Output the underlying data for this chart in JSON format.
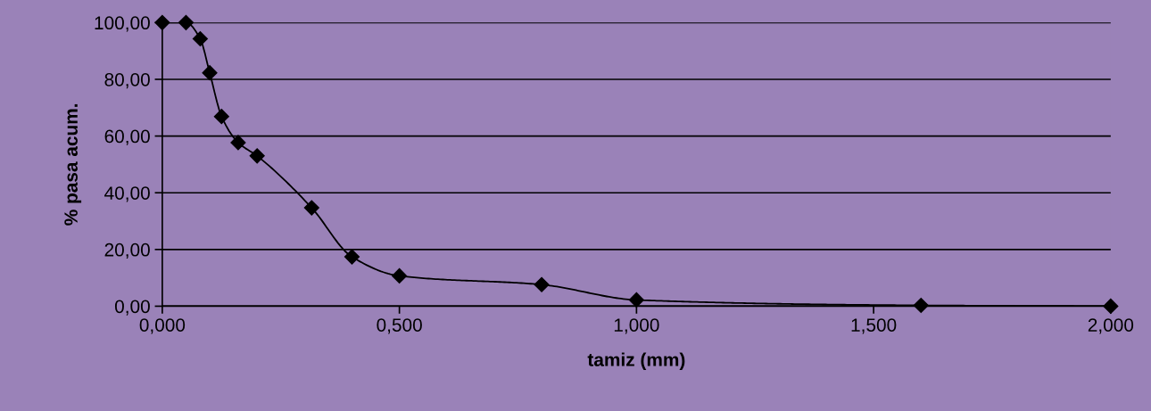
{
  "chart_data": {
    "type": "line",
    "xlabel": "tamiz (mm)",
    "ylabel": "% pasa acum.",
    "x": [
      0,
      0.05,
      0.08,
      0.1,
      0.125,
      0.16,
      0.2,
      0.315,
      0.4,
      0.5,
      0.8,
      1.0,
      1.6,
      2.0
    ],
    "series": [
      {
        "color": "#000000",
        "values": [
          100,
          100,
          94.3,
          82.3,
          66.9,
          57.7,
          53,
          34.7,
          17.4,
          10.7,
          7.6,
          2.2,
          0.3,
          0
        ]
      }
    ],
    "xlim": [
      0,
      2
    ],
    "xticks": [
      {
        "value": 0,
        "label": "0,000"
      },
      {
        "value": 0.5,
        "label": "0,500"
      },
      {
        "value": 1,
        "label": "1,000"
      },
      {
        "value": 1.5,
        "label": "1,500"
      },
      {
        "value": 2,
        "label": "2,000"
      }
    ],
    "ylim": [
      0,
      100
    ],
    "yticks": [
      {
        "value": 0,
        "label": "0,00"
      },
      {
        "value": 20,
        "label": "20,00"
      },
      {
        "value": 40,
        "label": "40,00"
      },
      {
        "value": 60,
        "label": "60,00"
      },
      {
        "value": 80,
        "label": "80,00"
      },
      {
        "value": 100,
        "label": "100,00"
      }
    ],
    "grid": "y",
    "marker": "diamond",
    "line_style": "solid",
    "legend": false
  }
}
